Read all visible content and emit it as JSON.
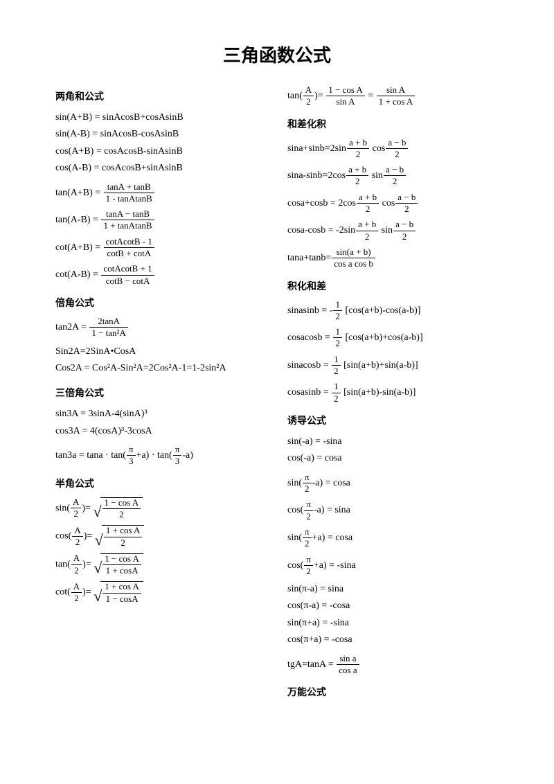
{
  "title": "三角函数公式",
  "left": {
    "s1": {
      "h": "两角和公式",
      "l1": "sin(A+B) = sinAcosB+cosAsinB",
      "l2": "sin(A-B) = sinAcosB-cosAsinB",
      "l3": "cos(A+B) = cosAcosB-sinAsinB",
      "l4": "cos(A-B) = cosAcosB+sinAsinB",
      "l5a": "tan(A+B) =",
      "l5n": "tanA + tanB",
      "l5d": "1 - tanAtanB",
      "l6a": "tan(A-B) =",
      "l6n": "tanA − tanB",
      "l6d": "1 + tanAtanB",
      "l7a": "cot(A+B) =",
      "l7n": "cotAcotB - 1",
      "l7d": "cotB + cotA",
      "l8a": "cot(A-B) =",
      "l8n": "cotAcotB + 1",
      "l8d": "cotB − cotA"
    },
    "s2": {
      "h": "倍角公式",
      "l1a": "tan2A =",
      "l1n": "2tanA",
      "l1d": "1 − tan²A",
      "l2": "Sin2A=2SinA•CosA",
      "l3": "Cos2A = Cos²A-Sin²A=2Cos²A-1=1-2sin²A"
    },
    "s3": {
      "h": "三倍角公式",
      "l1": "sin3A = 3sinA-4(sinA)³",
      "l2": "cos3A = 4(cosA)³-3cosA",
      "l3a": "tan3a = tana · tan(",
      "l3n": "π",
      "l3d": "3",
      "l3b": "+a) · tan(",
      "l3c": "-a)"
    },
    "s4": {
      "h": "半角公式",
      "l1a": "sin(",
      "l1n": "A",
      "l1d": "2",
      "l1b": ")=",
      "sq1n": "1 − cos A",
      "sq1d": "2",
      "l2a": "cos(",
      "sq2n": "1 + cos A",
      "sq2d": "2",
      "l3a": "tan(",
      "sq3n": "1 − cos A",
      "sq3d": "1 + cosA",
      "l4a": "cot(",
      "sq4n": "1 + cos A",
      "sq4d": "1 − cosA"
    }
  },
  "right": {
    "top": {
      "a": "tan(",
      "an": "A",
      "ad": "2",
      "b": ")=",
      "f1n": "1 − cos A",
      "f1d": "sin A",
      "eq": "=",
      "f2n": "sin A",
      "f2d": "1 + cos A"
    },
    "s5": {
      "h": "和差化积",
      "l1a": "sina+sinb=2sin",
      "f1n": "a + b",
      "f1d": "2",
      "l1b": "cos",
      "f2n": "a − b",
      "f2d": "2",
      "l2a": "sina-sinb=2cos",
      "l2b": "sin",
      "l3a": "cosa+cosb = 2cos",
      "l3b": "cos",
      "l4a": "cosa-cosb = -2sin",
      "l4b": "sin",
      "l5a": "tana+tanb=",
      "l5n": "sin(a + b)",
      "l5d": "cos a cos b"
    },
    "s6": {
      "h": "积化和差",
      "l1a": "sinasinb = -",
      "half": "1",
      "two": "2",
      "l1b": "[cos(a+b)-cos(a-b)]",
      "l2a": "cosacosb =",
      "l2b": "[cos(a+b)+cos(a-b)]",
      "l3a": "sinacosb =",
      "l3b": "[sin(a+b)+sin(a-b)]",
      "l4a": "cosasinb =",
      "l4b": "[sin(a+b)-sin(a-b)]"
    },
    "s7": {
      "h": "诱导公式",
      "l1": "sin(-a) = -sina",
      "l2": "cos(-a) = cosa",
      "l3a": "sin(",
      "pi": "π",
      "two": "2",
      "l3b": "-a) = cosa",
      "l4a": "cos(",
      "l4b": "-a) = sina",
      "l5a": "sin(",
      "l5b": "+a) = cosa",
      "l6a": "cos(",
      "l6b": "+a) = -sina",
      "l7": "sin(π-a) = sina",
      "l8": "cos(π-a) = -cosa",
      "l9": "sin(π+a) = -sina",
      "l10": "cos(π+a) = -cosa",
      "l11a": "tgA=tanA =",
      "l11n": "sin a",
      "l11d": "cos a"
    },
    "s8": {
      "h": "万能公式"
    }
  }
}
